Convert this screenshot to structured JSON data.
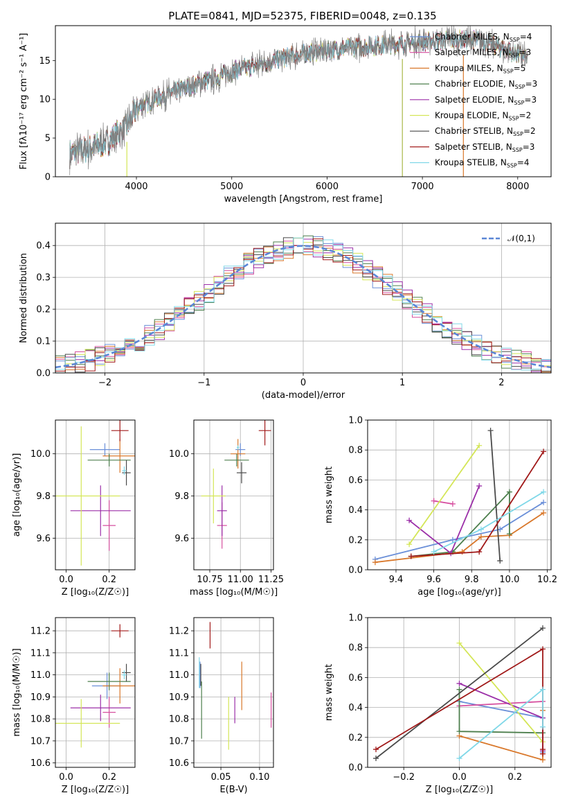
{
  "figure_title": "PLATE=0841, MJD=52375, FIBERID=0048, z=0.135",
  "chart_data": [
    {
      "id": "spectrum",
      "type": "line",
      "xlabel": "wavelength [Angstrom, rest frame]",
      "ylabel": "Flux [fλ10⁻¹⁷ erg cm⁻² s⁻¹ A⁻¹]",
      "xlim": [
        3150,
        8350
      ],
      "ylim": [
        0,
        19.5
      ],
      "xticks": [
        4000,
        5000,
        6000,
        7000,
        8000
      ],
      "yticks": [
        0,
        5,
        10,
        15
      ],
      "grid": false,
      "legend_position": "right",
      "legend": [
        {
          "label": "Chabrier MILES, N_SSP=4",
          "color": "#6a8fd8"
        },
        {
          "label": "Salpeter MILES, N_SSP=3",
          "color": "#d64f9f"
        },
        {
          "label": "Kroupa MILES, N_SSP=5",
          "color": "#d9782b"
        },
        {
          "label": "Chabrier ELODIE, N_SSP=3",
          "color": "#4d7f4d"
        },
        {
          "label": "Salpeter ELODIE, N_SSP=3",
          "color": "#9b2fa8"
        },
        {
          "label": "Kroupa ELODIE, N_SSP=2",
          "color": "#d4e657"
        },
        {
          "label": "Chabrier STELIB, N_SSP=2",
          "color": "#4a4a4a"
        },
        {
          "label": "Salpeter STELIB, N_SSP=3",
          "color": "#a01818"
        },
        {
          "label": "Kroupa STELIB, N_SSP=4",
          "color": "#80d8e8"
        }
      ],
      "data_color": "#808080",
      "continuum_x": [
        3300,
        3500,
        3700,
        3900,
        4000,
        4200,
        4400,
        4600,
        4800,
        5000,
        5200,
        5400,
        5600,
        5800,
        6000,
        6200,
        6400,
        6600,
        6800,
        7000,
        7200,
        7400,
        7600,
        7800,
        8000,
        8100
      ],
      "continuum_y": [
        3.0,
        3.6,
        4.5,
        6.5,
        8.8,
        10.0,
        11.0,
        11.8,
        12.6,
        13.6,
        14.2,
        14.8,
        15.5,
        16.0,
        16.3,
        16.6,
        16.8,
        17.0,
        17.2,
        17.4,
        17.6,
        17.7,
        17.6,
        16.8,
        15.8,
        15.2
      ],
      "vertical_markers": [
        {
          "x": 3900,
          "color": "#d4e657"
        },
        {
          "x": 6790,
          "color": "#a8b84a"
        },
        {
          "x": 7430,
          "color": "#d9782b"
        }
      ]
    },
    {
      "id": "residuals",
      "type": "step",
      "xlabel": "(data-model)/error",
      "ylabel": "Normed distribution",
      "xlim": [
        -2.5,
        2.5
      ],
      "ylim": [
        0,
        0.47
      ],
      "xticks": [
        -2,
        -1,
        0,
        1,
        2
      ],
      "yticks": [
        0.0,
        0.1,
        0.2,
        0.3,
        0.4
      ],
      "grid": true,
      "legend_position": "top-right",
      "reference_curve": {
        "label": "𝒩(0,1)",
        "color": "#5a86d6",
        "mean": 0,
        "sigma": 1
      },
      "bin_width": 0.1
    },
    {
      "id": "age_vs_Z",
      "type": "errorbar",
      "xlabel": "Z [log₁₀(Z/Z☉)]",
      "ylabel": "age  [log₁₀(age/yr)]",
      "xlim": [
        -0.05,
        0.32
      ],
      "ylim": [
        9.45,
        10.16
      ],
      "xticks": [
        0.0,
        0.2
      ],
      "yticks": [
        9.6,
        9.8,
        10.0
      ],
      "grid": true,
      "points": [
        {
          "color": "#6a8fd8",
          "x": 0.18,
          "xerr": 0.07,
          "y": 10.02,
          "yerr": 0.03
        },
        {
          "color": "#d64f9f",
          "x": 0.2,
          "xerr": 0.03,
          "y": 9.66,
          "yerr": 0.12
        },
        {
          "color": "#d9782b",
          "x": 0.25,
          "xerr": 0.08,
          "y": 9.99,
          "yerr": 0.08
        },
        {
          "color": "#4d7f4d",
          "x": 0.2,
          "xerr": 0.1,
          "y": 9.97,
          "yerr": 0.03
        },
        {
          "color": "#9b2fa8",
          "x": 0.16,
          "xerr": 0.14,
          "y": 9.73,
          "yerr": 0.12
        },
        {
          "color": "#d4e657",
          "x": 0.07,
          "xerr": 0.18,
          "y": 9.8,
          "yerr": 0.33
        },
        {
          "color": "#4a4a4a",
          "x": 0.28,
          "xerr": 0.02,
          "y": 9.91,
          "yerr": 0.06
        },
        {
          "color": "#a01818",
          "x": 0.25,
          "xerr": 0.04,
          "y": 10.11,
          "yerr": 0.05
        },
        {
          "color": "#80d8e8",
          "x": 0.27,
          "xerr": 0.01,
          "y": 9.92,
          "yerr": 0.02
        }
      ]
    },
    {
      "id": "age_vs_mass",
      "type": "errorbar",
      "xlabel": "mass [log₁₀(M/M☉)]",
      "ylabel": "",
      "xlim": [
        10.62,
        11.27
      ],
      "ylim": [
        9.45,
        10.16
      ],
      "xticks": [
        10.75,
        11.0,
        11.25
      ],
      "yticks": [
        9.6,
        9.8,
        10.0
      ],
      "grid": true,
      "points": [
        {
          "color": "#6a8fd8",
          "x": 11.0,
          "xerr": 0.04,
          "y": 10.02,
          "yerr": 0.03
        },
        {
          "color": "#d64f9f",
          "x": 10.85,
          "xerr": 0.04,
          "y": 9.66,
          "yerr": 0.11
        },
        {
          "color": "#d9782b",
          "x": 10.98,
          "xerr": 0.06,
          "y": 10.0,
          "yerr": 0.07
        },
        {
          "color": "#4d7f4d",
          "x": 10.97,
          "xerr": 0.1,
          "y": 9.97,
          "yerr": 0.03
        },
        {
          "color": "#9b2fa8",
          "x": 10.85,
          "xerr": 0.04,
          "y": 9.73,
          "yerr": 0.12
        },
        {
          "color": "#d4e657",
          "x": 10.78,
          "xerr": 0.1,
          "y": 9.8,
          "yerr": 0.13
        },
        {
          "color": "#4a4a4a",
          "x": 11.01,
          "xerr": 0.04,
          "y": 9.91,
          "yerr": 0.05
        },
        {
          "color": "#a01818",
          "x": 11.2,
          "xerr": 0.05,
          "y": 10.11,
          "yerr": 0.07
        },
        {
          "color": "#80d8e8",
          "x": 10.98,
          "xerr": 0.01,
          "y": 10.03,
          "yerr": 0.01
        }
      ]
    },
    {
      "id": "weight_vs_age",
      "type": "line",
      "xlabel": "age  [log₁₀(age/yr)]",
      "ylabel": "mass weight",
      "xlim": [
        9.25,
        10.22
      ],
      "ylim": [
        0.0,
        1.0
      ],
      "xticks": [
        9.4,
        9.6,
        9.8,
        10.0,
        10.2
      ],
      "yticks": [
        0.0,
        0.2,
        0.4,
        0.6,
        0.8,
        1.0
      ],
      "grid": true,
      "series": [
        {
          "color": "#6a8fd8",
          "x": [
            9.29,
            9.7,
            9.95,
            10.18
          ],
          "y": [
            0.07,
            0.2,
            0.27,
            0.45
          ]
        },
        {
          "color": "#d64f9f",
          "x": [
            9.6,
            9.7
          ],
          "y": [
            0.46,
            0.44
          ]
        },
        {
          "color": "#d9782b",
          "x": [
            9.29,
            9.75,
            9.85,
            10.0,
            10.18
          ],
          "y": [
            0.05,
            0.12,
            0.22,
            0.23,
            0.38
          ]
        },
        {
          "color": "#4d7f4d",
          "x": [
            9.48,
            9.7,
            10.0,
            10.0
          ],
          "y": [
            0.09,
            0.12,
            0.52,
            0.24
          ]
        },
        {
          "color": "#9b2fa8",
          "x": [
            9.47,
            9.69,
            9.84
          ],
          "y": [
            0.33,
            0.11,
            0.56
          ]
        },
        {
          "color": "#d4e657",
          "x": [
            9.47,
            9.84
          ],
          "y": [
            0.17,
            0.83
          ]
        },
        {
          "color": "#4a4a4a",
          "x": [
            9.9,
            9.95
          ],
          "y": [
            0.93,
            0.06
          ]
        },
        {
          "color": "#a01818",
          "x": [
            9.48,
            9.84,
            10.18
          ],
          "y": [
            0.09,
            0.12,
            0.79
          ]
        },
        {
          "color": "#80d8e8",
          "x": [
            9.6,
            9.85,
            10.18
          ],
          "y": [
            0.12,
            0.27,
            0.52
          ]
        }
      ]
    },
    {
      "id": "mass_vs_Z",
      "type": "errorbar",
      "xlabel": "Z [log₁₀(Z/Z☉)]",
      "ylabel": "mass [log₁₀(M/M☉)]",
      "xlim": [
        -0.05,
        0.32
      ],
      "ylim": [
        10.58,
        11.26
      ],
      "xticks": [
        0.0,
        0.2
      ],
      "yticks": [
        10.6,
        10.7,
        10.8,
        10.9,
        11.0,
        11.1,
        11.2
      ],
      "grid": true,
      "points": [
        {
          "color": "#6a8fd8",
          "x": 0.19,
          "xerr": 0.07,
          "y": 10.95,
          "yerr": 0.06
        },
        {
          "color": "#d64f9f",
          "x": 0.2,
          "xerr": 0.03,
          "y": 10.83,
          "yerr": 0.07
        },
        {
          "color": "#d9782b",
          "x": 0.25,
          "xerr": 0.08,
          "y": 10.95,
          "yerr": 0.08
        },
        {
          "color": "#4d7f4d",
          "x": 0.2,
          "xerr": 0.1,
          "y": 10.97,
          "yerr": 0.04
        },
        {
          "color": "#9b2fa8",
          "x": 0.16,
          "xerr": 0.14,
          "y": 10.85,
          "yerr": 0.06
        },
        {
          "color": "#d4e657",
          "x": 0.07,
          "xerr": 0.18,
          "y": 10.78,
          "yerr": 0.11
        },
        {
          "color": "#4a4a4a",
          "x": 0.28,
          "xerr": 0.02,
          "y": 11.01,
          "yerr": 0.04
        },
        {
          "color": "#a01818",
          "x": 0.25,
          "xerr": 0.04,
          "y": 11.2,
          "yerr": 0.03
        },
        {
          "color": "#80d8e8",
          "x": 0.27,
          "xerr": 0.01,
          "y": 11.0,
          "yerr": 0.02
        }
      ]
    },
    {
      "id": "mass_vs_EBV",
      "type": "errorbar",
      "xlabel": "E(B-V)",
      "ylabel": "",
      "xlim": [
        0.015,
        0.118
      ],
      "ylim": [
        10.58,
        11.26
      ],
      "xticks": [
        0.05,
        0.1
      ],
      "yticks": [
        10.6,
        10.7,
        10.8,
        10.9,
        11.0,
        11.1,
        11.2
      ],
      "grid": true,
      "points": [
        {
          "color": "#6a8fd8",
          "x": 0.023,
          "xerr": 0.0,
          "y": 11.0,
          "yerr": 0.06
        },
        {
          "color": "#d64f9f",
          "x": 0.115,
          "xerr": 0.0,
          "y": 10.84,
          "yerr": 0.08
        },
        {
          "color": "#d9782b",
          "x": 0.077,
          "xerr": 0.0,
          "y": 10.95,
          "yerr": 0.11
        },
        {
          "color": "#4d7f4d",
          "x": 0.025,
          "xerr": 0.0,
          "y": 10.84,
          "yerr": 0.13
        },
        {
          "color": "#9b2fa8",
          "x": 0.068,
          "xerr": 0.0,
          "y": 10.84,
          "yerr": 0.06
        },
        {
          "color": "#d4e657",
          "x": 0.06,
          "xerr": 0.0,
          "y": 10.78,
          "yerr": 0.12
        },
        {
          "color": "#4a4a4a",
          "x": 0.024,
          "xerr": 0.0,
          "y": 11.0,
          "yerr": 0.05
        },
        {
          "color": "#a01818",
          "x": 0.036,
          "xerr": 0.0,
          "y": 11.18,
          "yerr": 0.06
        },
        {
          "color": "#80d8e8",
          "x": 0.022,
          "xerr": 0.0,
          "y": 11.01,
          "yerr": 0.07
        }
      ]
    },
    {
      "id": "weight_vs_Z",
      "type": "line",
      "xlabel": "Z [log₁₀(Z/Z☉)]",
      "ylabel": "mass weight",
      "xlim": [
        -0.33,
        0.33
      ],
      "ylim": [
        0.0,
        1.0
      ],
      "xticks": [
        -0.2,
        0.0,
        0.2
      ],
      "yticks": [
        0.0,
        0.2,
        0.4,
        0.6,
        0.8,
        1.0
      ],
      "grid": true,
      "series": [
        {
          "color": "#6a8fd8",
          "x": [
            0.0,
            0.3,
            0.3
          ],
          "y": [
            0.44,
            0.33,
            0.1
          ]
        },
        {
          "color": "#d64f9f",
          "x": [
            0.0,
            0.3
          ],
          "y": [
            0.41,
            0.44
          ]
        },
        {
          "color": "#d9782b",
          "x": [
            0.0,
            0.3,
            0.3
          ],
          "y": [
            0.21,
            0.05,
            0.38
          ]
        },
        {
          "color": "#4d7f4d",
          "x": [
            0.0,
            0.0,
            0.3
          ],
          "y": [
            0.52,
            0.24,
            0.23
          ]
        },
        {
          "color": "#9b2fa8",
          "x": [
            0.0,
            0.3,
            0.3
          ],
          "y": [
            0.56,
            0.33,
            0.11
          ]
        },
        {
          "color": "#d4e657",
          "x": [
            0.0,
            0.3
          ],
          "y": [
            0.83,
            0.17
          ]
        },
        {
          "color": "#4a4a4a",
          "x": [
            -0.3,
            0.3
          ],
          "y": [
            0.06,
            0.93
          ]
        },
        {
          "color": "#a01818",
          "x": [
            -0.3,
            0.3,
            0.3,
            0.3
          ],
          "y": [
            0.12,
            0.79,
            0.09,
            0.12
          ]
        },
        {
          "color": "#80d8e8",
          "x": [
            0.0,
            0.3,
            0.3
          ],
          "y": [
            0.06,
            0.52,
            0.27
          ]
        }
      ]
    }
  ]
}
